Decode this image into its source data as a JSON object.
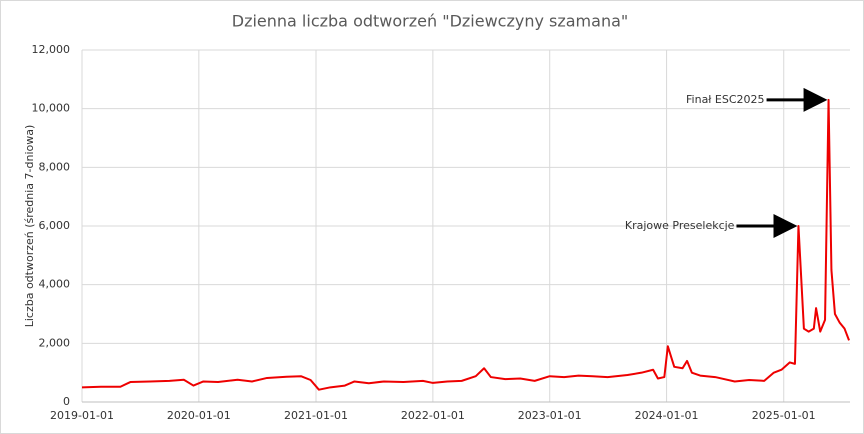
{
  "chart_data": {
    "type": "line",
    "title": "Dzienna liczba odtworzeń \"Dziewczyny szamana\"",
    "y_label": "Liczba odtworzeń  (średnia 7-dniowa)",
    "x": [
      "2019-01-01",
      "2019-03-01",
      "2019-05-01",
      "2019-06-01",
      "2019-08-01",
      "2019-10-01",
      "2019-11-15",
      "2019-12-15",
      "2020-01-15",
      "2020-03-01",
      "2020-05-01",
      "2020-06-15",
      "2020-08-01",
      "2020-10-01",
      "2020-11-15",
      "2020-12-15",
      "2021-01-10",
      "2021-02-15",
      "2021-04-01",
      "2021-05-01",
      "2021-06-15",
      "2021-08-01",
      "2021-10-01",
      "2021-12-01",
      "2022-01-01",
      "2022-02-15",
      "2022-04-01",
      "2022-05-15",
      "2022-06-10",
      "2022-07-01",
      "2022-08-15",
      "2022-10-01",
      "2022-11-15",
      "2023-01-01",
      "2023-02-15",
      "2023-04-01",
      "2023-05-15",
      "2023-07-01",
      "2023-09-01",
      "2023-10-15",
      "2023-11-20",
      "2023-12-05",
      "2023-12-25",
      "2024-01-05",
      "2024-01-25",
      "2024-02-20",
      "2024-03-05",
      "2024-03-20",
      "2024-04-15",
      "2024-06-01",
      "2024-08-01",
      "2024-09-15",
      "2024-11-01",
      "2024-12-01",
      "2024-12-25",
      "2025-01-20",
      "2025-02-05",
      "2025-02-16",
      "2025-03-05",
      "2025-03-20",
      "2025-04-05",
      "2025-04-12",
      "2025-04-25",
      "2025-05-10",
      "2025-05-21",
      "2025-05-30",
      "2025-06-10",
      "2025-06-25",
      "2025-07-10",
      "2025-07-24"
    ],
    "series": [
      {
        "name": "Liczba odtworzeń",
        "color": "#ee0000",
        "values": [
          500,
          520,
          520,
          680,
          700,
          720,
          760,
          560,
          700,
          680,
          760,
          700,
          820,
          860,
          880,
          750,
          420,
          500,
          560,
          700,
          640,
          700,
          680,
          720,
          650,
          700,
          720,
          880,
          1150,
          850,
          780,
          800,
          720,
          880,
          850,
          900,
          880,
          850,
          920,
          1000,
          1100,
          800,
          850,
          1900,
          1200,
          1150,
          1400,
          1000,
          900,
          850,
          700,
          750,
          720,
          1000,
          1100,
          1350,
          1300,
          6000,
          2500,
          2400,
          2500,
          3200,
          2400,
          2800,
          10300,
          4500,
          3000,
          2700,
          2500,
          2100
        ]
      }
    ],
    "xlim": [
      "2019-01-01",
      "2025-07-27"
    ],
    "xticks": [
      "2019-01-01",
      "2020-01-01",
      "2021-01-01",
      "2022-01-01",
      "2023-01-01",
      "2024-01-01",
      "2025-01-01"
    ],
    "ylim": [
      0,
      12000
    ],
    "yticks": [
      0,
      {
        "value": 2000,
        "label": "2,000"
      },
      {
        "value": 4000,
        "label": "4,000"
      },
      {
        "value": 6000,
        "label": "6,000"
      },
      {
        "value": 8000,
        "label": "8,000"
      },
      {
        "value": 10000,
        "label": "10,000"
      },
      {
        "value": 12000,
        "label": "12,000"
      }
    ],
    "grid": true,
    "annotations": [
      {
        "text": "Krajowe Preselekcje",
        "x": "2025-02-16",
        "y": 6000
      },
      {
        "text": "Finał ESC2025",
        "x": "2025-05-21",
        "y": 10300
      }
    ]
  }
}
